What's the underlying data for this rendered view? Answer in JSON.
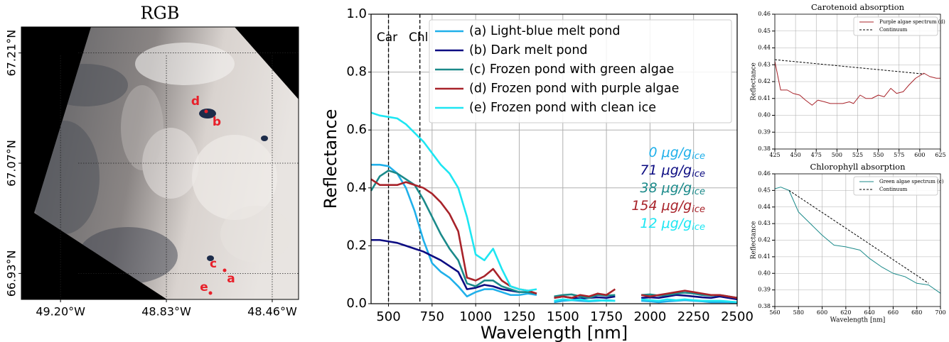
{
  "chart_data": [
    {
      "type": "image",
      "title": "RGB",
      "xlim": [
        -49.337,
        -48.368
      ],
      "ylim": [
        66.897,
        67.243
      ],
      "xticks": [
        {
          "value": -49.2,
          "label": "49.20°W"
        },
        {
          "value": -48.83,
          "label": "48.83°W"
        },
        {
          "value": -48.46,
          "label": "48.46°W"
        }
      ],
      "yticks": [
        {
          "value": 66.93,
          "label": "66.93°N"
        },
        {
          "value": 67.07,
          "label": "67.07°N"
        },
        {
          "value": 67.21,
          "label": "67.21°N"
        }
      ],
      "annotations": [
        "a",
        "b",
        "c",
        "d",
        "e"
      ]
    },
    {
      "type": "line",
      "xlabel": "Wavelength [nm]",
      "ylabel": "Reflectance",
      "x": [
        400,
        450,
        500,
        550,
        600,
        650,
        700,
        750,
        800,
        850,
        900,
        950,
        1000,
        1050,
        1100,
        1150,
        1200,
        1250,
        1300,
        1350,
        1400,
        1450,
        1500,
        1550,
        1600,
        1650,
        1700,
        1750,
        1800,
        1850,
        1900,
        1950,
        2000,
        2050,
        2100,
        2150,
        2200,
        2250,
        2300,
        2350,
        2400,
        2450,
        2500
      ],
      "xlim": [
        400,
        2500
      ],
      "xticks": [
        500,
        750,
        1000,
        1250,
        1500,
        1750,
        2000,
        2250,
        2500
      ],
      "ylim": [
        0,
        1
      ],
      "yticks": [
        {
          "value": 0,
          "label": "0.0"
        },
        0.2,
        0.4,
        0.6,
        0.8,
        {
          "value": 1,
          "label": "1.0"
        }
      ],
      "grid": true,
      "legend": "upper right",
      "vlines": [
        {
          "x": 500,
          "label": "Car"
        },
        {
          "x": 680,
          "label": "Chl"
        }
      ],
      "concentration_subscript": "ice",
      "series": [
        {
          "name": "(a) Light-blue melt pond",
          "color": "#20b0ea",
          "concentration": "0 μg/g",
          "values": [
            0.48,
            0.48,
            0.475,
            0.45,
            0.4,
            0.32,
            0.22,
            0.14,
            0.11,
            0.09,
            0.06,
            0.025,
            0.04,
            0.05,
            0.05,
            0.04,
            0.03,
            0.03,
            0.035,
            0.03,
            null,
            0.005,
            0.01,
            0.012,
            0.01,
            0.008,
            0.01,
            0.012,
            0.01,
            null,
            null,
            0.01,
            0.008,
            0.005,
            0.008,
            0.01,
            0.012,
            0.01,
            0.008,
            0.005,
            0.005,
            0.005,
            0.003
          ]
        },
        {
          "name": "(b) Dark melt pond",
          "color": "#0c0c82",
          "concentration": "71 μg/g",
          "values": [
            0.22,
            0.22,
            0.215,
            0.21,
            0.2,
            0.19,
            0.18,
            0.165,
            0.15,
            0.13,
            0.11,
            0.05,
            0.055,
            0.065,
            0.06,
            0.05,
            0.045,
            0.04,
            0.04,
            0.035,
            null,
            0.02,
            0.025,
            0.02,
            0.018,
            0.02,
            0.022,
            0.02,
            0.025,
            null,
            null,
            0.02,
            0.022,
            0.02,
            0.025,
            0.03,
            0.028,
            0.025,
            0.022,
            0.02,
            0.025,
            0.02,
            0.015
          ]
        },
        {
          "name": "(c) Frozen pond with green algae",
          "color": "#1b8a8a",
          "concentration": "38 μg/g",
          "values": [
            0.39,
            0.44,
            0.46,
            0.45,
            0.43,
            0.41,
            0.36,
            0.3,
            0.24,
            0.19,
            0.15,
            0.07,
            0.06,
            0.08,
            0.08,
            0.06,
            0.05,
            0.04,
            0.04,
            0.035,
            null,
            0.025,
            0.03,
            0.032,
            0.025,
            0.02,
            0.03,
            0.028,
            0.03,
            null,
            null,
            0.03,
            0.032,
            0.028,
            0.03,
            0.035,
            0.038,
            0.035,
            0.03,
            0.028,
            0.03,
            0.025,
            0.02
          ]
        },
        {
          "name": "(d) Frozen pond with purple algae",
          "color": "#a8232a",
          "concentration": "154 μg/g",
          "values": [
            0.43,
            0.41,
            0.41,
            0.41,
            0.42,
            0.41,
            0.4,
            0.38,
            0.35,
            0.31,
            0.25,
            0.09,
            0.08,
            0.095,
            0.12,
            0.08,
            0.06,
            0.05,
            0.045,
            0.035,
            null,
            0.02,
            0.025,
            0.02,
            0.03,
            0.025,
            0.035,
            0.03,
            0.05,
            null,
            null,
            0.03,
            0.025,
            0.03,
            0.035,
            0.04,
            0.045,
            0.04,
            0.035,
            0.03,
            0.03,
            0.025,
            0.02
          ]
        },
        {
          "name": "(e) Frozen pond with clean ice",
          "color": "#1ee6f2",
          "concentration": "12 μg/g",
          "values": [
            0.66,
            0.65,
            0.645,
            0.64,
            0.62,
            0.59,
            0.56,
            0.52,
            0.48,
            0.45,
            0.4,
            0.3,
            0.17,
            0.15,
            0.19,
            0.12,
            0.06,
            0.05,
            0.045,
            0.05,
            null,
            0.01,
            0.015,
            0.012,
            0.015,
            0.01,
            0.012,
            0.01,
            0.01,
            null,
            null,
            0.015,
            0.012,
            0.01,
            0.015,
            0.012,
            0.015,
            0.012,
            0.01,
            0.01,
            0.01,
            0.008,
            0.005
          ]
        }
      ]
    },
    {
      "type": "line",
      "title": "Carotenoid absorption",
      "ylabel": "Reflectance",
      "xlim": [
        425,
        625
      ],
      "xticks": [
        425,
        450,
        475,
        500,
        525,
        550,
        575,
        600,
        625
      ],
      "ylim": [
        0.38,
        0.46
      ],
      "yticks": [
        0.38,
        0.39,
        {
          "value": 0.4,
          "label": "0.40"
        },
        0.41,
        0.42,
        0.43,
        0.44,
        0.45,
        0.46
      ],
      "grid": true,
      "legend": "upper right",
      "series": [
        {
          "name": "Purple algae spectrum (d)",
          "color": "#a8232a",
          "x": [
            425,
            432,
            440,
            447,
            455,
            462,
            470,
            477,
            485,
            492,
            500,
            507,
            515,
            520,
            528,
            535,
            542,
            550,
            557,
            565,
            572,
            580,
            587,
            595,
            605,
            612,
            620,
            625
          ],
          "values": [
            0.432,
            0.415,
            0.415,
            0.413,
            0.412,
            0.409,
            0.406,
            0.409,
            0.408,
            0.407,
            0.407,
            0.407,
            0.408,
            0.407,
            0.412,
            0.41,
            0.41,
            0.412,
            0.411,
            0.416,
            0.413,
            0.414,
            0.418,
            0.422,
            0.425,
            0.423,
            0.422,
            0.422
          ]
        },
        {
          "name": "Continuum",
          "color": "#000000",
          "dashed": true,
          "x": [
            425,
            605
          ],
          "values": [
            0.433,
            0.4245
          ]
        }
      ]
    },
    {
      "type": "line",
      "title": "Chlorophyll absorption",
      "xlabel": "Wavelength [nm]",
      "ylabel": "Reflectance",
      "xlim": [
        560,
        700
      ],
      "xticks": [
        560,
        580,
        600,
        620,
        640,
        660,
        680,
        700
      ],
      "ylim": [
        0.38,
        0.46
      ],
      "yticks": [
        0.38,
        0.39,
        {
          "value": 0.4,
          "label": "0.40"
        },
        0.41,
        0.42,
        0.43,
        0.44,
        0.45,
        0.46
      ],
      "grid": true,
      "legend": "upper right",
      "series": [
        {
          "name": "Green algae spectrum (c)",
          "color": "#1b8a8a",
          "x": [
            560,
            565,
            572,
            580,
            590,
            600,
            610,
            620,
            632,
            640,
            650,
            660,
            670,
            680,
            690,
            700
          ],
          "values": [
            0.451,
            0.452,
            0.45,
            0.437,
            0.43,
            0.423,
            0.417,
            0.416,
            0.414,
            0.409,
            0.404,
            0.4,
            0.398,
            0.394,
            0.393,
            0.388
          ]
        },
        {
          "name": "Continuum",
          "color": "#000000",
          "dashed": true,
          "x": [
            572,
            690
          ],
          "values": [
            0.45,
            0.394
          ]
        }
      ]
    }
  ]
}
